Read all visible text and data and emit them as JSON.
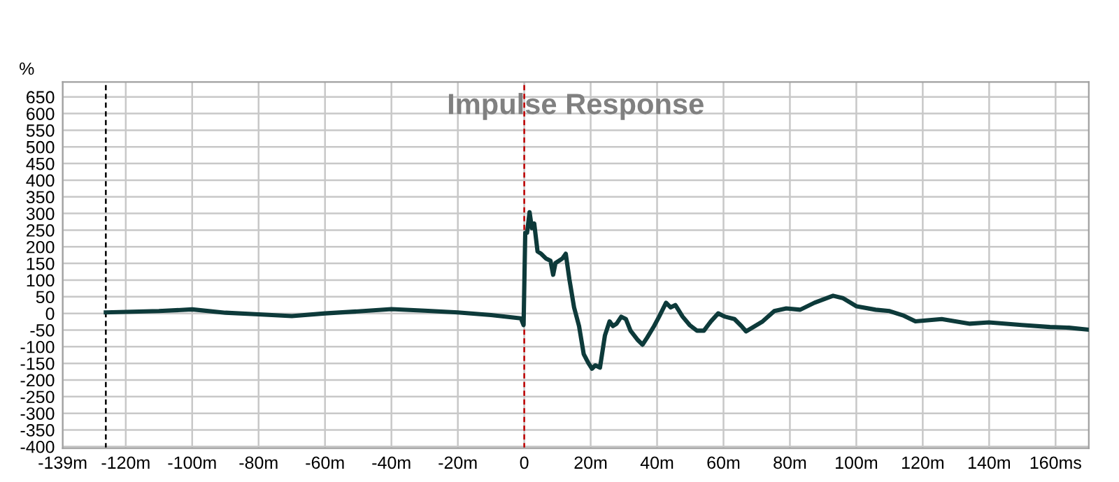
{
  "chart_data": {
    "type": "line",
    "annotations": [
      "Impulse Response"
    ],
    "ylabel": "%",
    "xlim": [
      -139,
      170
    ],
    "ylim": [
      -405,
      695
    ],
    "xticks": [
      {
        "value": -139,
        "label": "-139m"
      },
      {
        "value": -120,
        "label": "-120m"
      },
      {
        "value": -100,
        "label": "-100m"
      },
      {
        "value": -80,
        "label": "-80m"
      },
      {
        "value": -60,
        "label": "-60m"
      },
      {
        "value": -40,
        "label": "-40m"
      },
      {
        "value": -20,
        "label": "-20m"
      },
      0,
      {
        "value": 20,
        "label": "20m"
      },
      {
        "value": 40,
        "label": "40m"
      },
      {
        "value": 60,
        "label": "60m"
      },
      {
        "value": 80,
        "label": "80m"
      },
      {
        "value": 100,
        "label": "100m"
      },
      {
        "value": 120,
        "label": "120m"
      },
      {
        "value": 140,
        "label": "140m"
      },
      {
        "value": 160,
        "label": "160ms"
      }
    ],
    "yticks": [
      -400,
      -350,
      -300,
      -250,
      -200,
      -150,
      -100,
      -50,
      0,
      50,
      100,
      150,
      200,
      250,
      300,
      350,
      400,
      450,
      500,
      550,
      600,
      650
    ],
    "grid": true,
    "ref_lines": [
      {
        "axis": "x",
        "value": -126,
        "color": "#000000",
        "line_style": "dashed"
      },
      {
        "axis": "x",
        "value": 0,
        "color": "#c00000",
        "line_style": "dashed"
      }
    ],
    "series": [
      {
        "color": "#0d3a3a",
        "x": [
          -126,
          -110,
          -100,
          -90,
          -80,
          -70,
          -60,
          -50,
          -40,
          -30,
          -20,
          -10,
          -1,
          -0.2,
          0.3,
          0.85,
          1.6,
          2.3,
          3,
          4,
          5.1,
          6.5,
          7.9,
          8.7,
          9.4,
          11.5,
          12.5,
          13.6,
          15,
          16.5,
          17.9,
          19.3,
          20.4,
          21.4,
          22.8,
          24.3,
          25.7,
          26.7,
          27.8,
          29.2,
          30.6,
          32,
          34.2,
          35.6,
          37,
          39.1,
          40.6,
          42.7,
          44.1,
          45.5,
          47.7,
          49.8,
          52,
          54.1,
          56.2,
          58.4,
          60.5,
          63.3,
          65.4,
          66.8,
          69,
          71.8,
          75.3,
          78.9,
          83.1,
          87.4,
          93,
          95.9,
          100.1,
          105.8,
          110,
          114.3,
          117.8,
          125.7,
          134.2,
          139.9,
          149.8,
          158.3,
          164,
          170
        ],
        "values": [
          3,
          7,
          12,
          2,
          -3,
          -8,
          0,
          6,
          13,
          8,
          3,
          -5,
          -15,
          -35,
          242,
          242,
          304,
          256,
          270,
          186,
          179,
          165,
          158,
          116,
          151,
          165,
          179,
          102,
          18,
          -38,
          -122,
          -149,
          -166,
          -156,
          -163,
          -66,
          -24,
          -38,
          -31,
          -10,
          -17,
          -52,
          -80,
          -94,
          -73,
          -38,
          -10,
          32,
          18,
          25,
          -10,
          -35,
          -52,
          -52,
          -24,
          0,
          -10,
          -17,
          -38,
          -54,
          -41,
          -24,
          7,
          15,
          11,
          32,
          53,
          46,
          21,
          11,
          7,
          -7,
          -24,
          -17,
          -31,
          -27,
          -35,
          -41,
          -43,
          -49
        ]
      }
    ]
  }
}
